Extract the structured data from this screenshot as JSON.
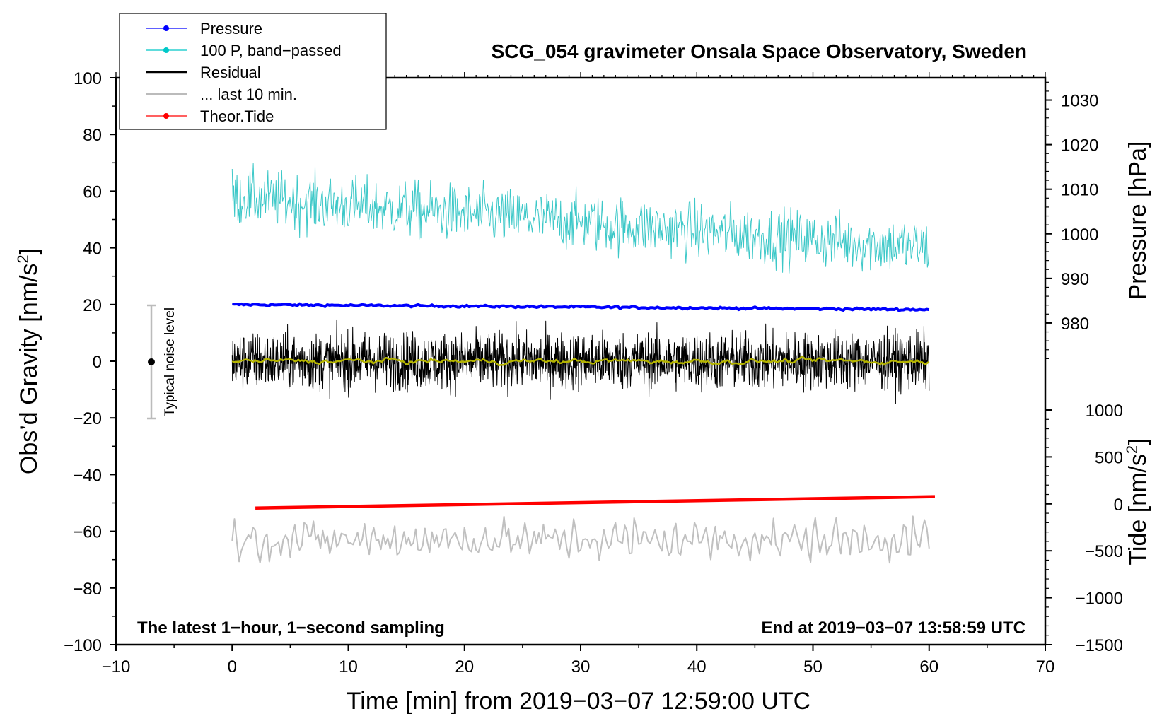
{
  "chart_data": {
    "type": "line",
    "title": "SCG_054 gravimeter Onsala Space Observatory, Sweden",
    "xlabel": "Time [min] from 2019−03−07 12:59:00 UTC",
    "ylabel_left": "Obs’d Gravity [nm/s",
    "ylabel_left_sup": "2",
    "ylabel_left_end": "]",
    "ylabel_right_pressure": "Pressure [hPa]",
    "ylabel_right_tide": "Tide [nm/s",
    "ylabel_right_tide_sup": "2",
    "ylabel_right_tide_end": "]",
    "xlim": [
      -10,
      70
    ],
    "ylim_left": [
      -100,
      100
    ],
    "pressure_axis": {
      "range": [
        970,
        1035
      ],
      "ticks": [
        980,
        990,
        1000,
        1010,
        1020,
        1030
      ]
    },
    "tide_axis": {
      "range": [
        -1500,
        1500
      ],
      "ticks": [
        -1500,
        -1000,
        -500,
        0,
        500,
        1000
      ]
    },
    "x_ticks": [
      -10,
      0,
      10,
      20,
      30,
      40,
      50,
      60,
      70
    ],
    "x_tick_labels": [
      "−10",
      "0",
      "10",
      "20",
      "30",
      "40",
      "50",
      "60",
      "70"
    ],
    "y_ticks": [
      -100,
      -80,
      -60,
      -40,
      -20,
      0,
      20,
      40,
      60,
      80,
      100
    ],
    "y_tick_labels": [
      "−100",
      "−80",
      "−60",
      "−40",
      "−20",
      "0",
      "20",
      "40",
      "60",
      "80",
      "100"
    ],
    "pressure_tick_labels": [
      "980",
      "990",
      "1000",
      "1010",
      "1020",
      "1030"
    ],
    "tide_tick_labels": [
      "−1500",
      "−1000",
      "−500",
      "0",
      "500",
      "1000"
    ],
    "annotation_left": "The latest 1−hour, 1−second sampling",
    "annotation_right": "End at 2019−03−07 13:58:59 UTC",
    "noise_label": "Typical noise level",
    "noise_bar": {
      "x": -7,
      "center": 0,
      "half_range": 20
    },
    "legend": [
      {
        "label": "Pressure",
        "color": "#0000ff",
        "marker": true
      },
      {
        "label": "100 P, band−passed",
        "color": "#00c8c8",
        "marker": true
      },
      {
        "label": "Residual",
        "color": "#000000",
        "marker": false
      },
      {
        "label": "... last 10 min.",
        "color": "#bbbbbb",
        "marker": false
      },
      {
        "label": "Theor.Tide",
        "color": "#ff0000",
        "marker": true
      }
    ],
    "series": [
      {
        "name": "Pressure",
        "color": "#0000ff",
        "x_range": [
          0,
          60
        ],
        "y_start": 20,
        "y_end": 18.2,
        "noise_amplitude": 0.2
      },
      {
        "name": "100 P, band-passed",
        "color": "#3cc8c8",
        "x_range": [
          0,
          60
        ],
        "y_start": 58,
        "y_end": 40,
        "noise_amplitude": 5
      },
      {
        "name": "Residual",
        "color": "#000000",
        "x_range": [
          0,
          60
        ],
        "y_start": 0,
        "y_end": 0,
        "noise_amplitude": 5
      },
      {
        "name": "Residual smoothed",
        "color": "#b4b400",
        "x_range": [
          0,
          60
        ],
        "y_start": 0,
        "y_end": 0,
        "noise_amplitude": 0.8
      },
      {
        "name": "... last 10 min.",
        "color": "#c0c0c0",
        "x_range": [
          0,
          60
        ],
        "y_start": -63,
        "y_end": -63,
        "noise_amplitude": 5
      },
      {
        "name": "Theor.Tide",
        "color": "#ff0000",
        "x_range": [
          2,
          60.5
        ],
        "y_start": -51.8,
        "y_end": -47.8,
        "noise_amplitude": 0
      }
    ]
  }
}
